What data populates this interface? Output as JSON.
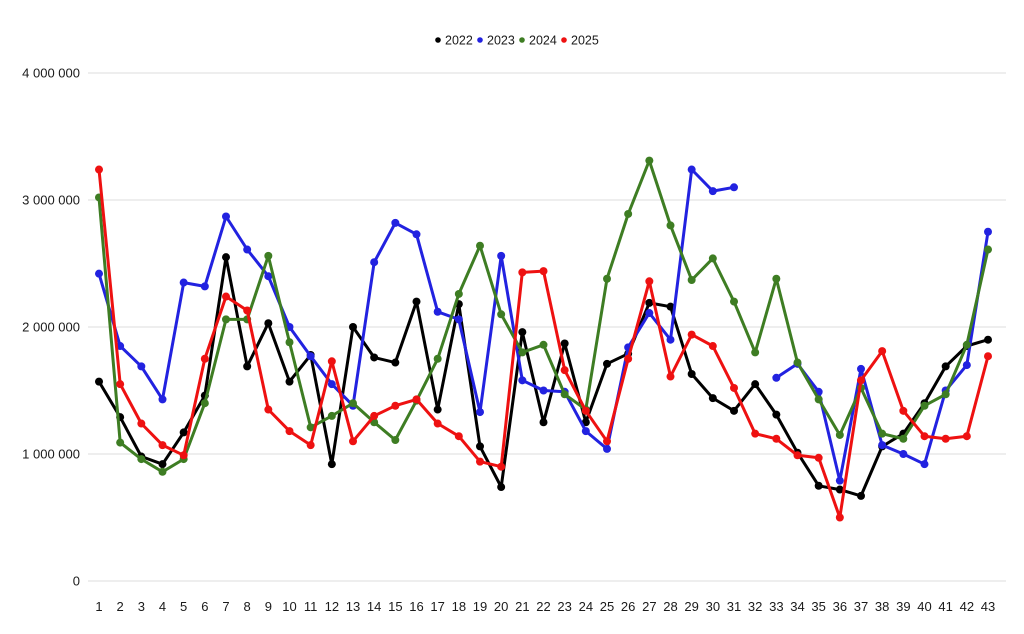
{
  "chart_data": {
    "type": "line",
    "title": "",
    "xlabel": "",
    "ylabel": "",
    "x": [
      1,
      2,
      3,
      4,
      5,
      6,
      7,
      8,
      9,
      10,
      11,
      12,
      13,
      14,
      15,
      16,
      17,
      18,
      19,
      20,
      21,
      22,
      23,
      24,
      25,
      26,
      27,
      28,
      29,
      30,
      31,
      32,
      33,
      34,
      35,
      36,
      37,
      38,
      39,
      40,
      41,
      42,
      43
    ],
    "ylim": [
      0,
      4000000
    ],
    "y_gridline_values": [
      0,
      1000000,
      2000000,
      3000000,
      4000000
    ],
    "ytick_labels": [
      "0",
      "1 000 000",
      "2 000 000",
      "3 000 000",
      "4 000 000"
    ],
    "grid": true,
    "legend_position": "top-center",
    "series": [
      {
        "name": "2022",
        "color": "#000000",
        "values": [
          1570000,
          1290000,
          980000,
          920000,
          1170000,
          1460000,
          2550000,
          1690000,
          2030000,
          1570000,
          1780000,
          920000,
          2000000,
          1760000,
          1720000,
          2200000,
          1350000,
          2180000,
          1060000,
          740000,
          1960000,
          1250000,
          1870000,
          1250000,
          1710000,
          1790000,
          2190000,
          2160000,
          1630000,
          1440000,
          1340000,
          1550000,
          1310000,
          1010000,
          750000,
          720000,
          670000,
          1060000,
          1160000,
          1400000,
          1690000,
          1850000,
          1900000
        ]
      },
      {
        "name": "2023",
        "color": "#2222e0",
        "values": [
          2420000,
          1850000,
          1690000,
          1430000,
          2350000,
          2320000,
          2870000,
          2610000,
          2400000,
          2000000,
          1770000,
          1550000,
          1380000,
          2510000,
          2820000,
          2730000,
          2120000,
          2060000,
          1330000,
          2560000,
          1580000,
          1500000,
          1490000,
          1180000,
          1040000,
          1840000,
          2110000,
          1900000,
          3240000,
          3070000,
          3100000,
          null,
          1600000,
          1710000,
          1490000,
          790000,
          1670000,
          1070000,
          1000000,
          920000,
          1500000,
          1700000,
          2750000
        ]
      },
      {
        "name": "2024",
        "color": "#3e7d23",
        "values": [
          3020000,
          1090000,
          960000,
          860000,
          960000,
          1400000,
          2060000,
          2060000,
          2560000,
          1880000,
          1210000,
          1300000,
          1400000,
          1250000,
          1110000,
          1420000,
          1750000,
          2260000,
          2640000,
          2100000,
          1800000,
          1860000,
          1470000,
          1350000,
          2380000,
          2890000,
          3310000,
          2800000,
          2370000,
          2540000,
          2200000,
          1800000,
          2380000,
          1720000,
          1430000,
          1150000,
          1520000,
          1160000,
          1120000,
          1380000,
          1470000,
          1860000,
          2610000
        ]
      },
      {
        "name": "2025",
        "color": "#ee1111",
        "values": [
          3240000,
          1550000,
          1240000,
          1070000,
          990000,
          1750000,
          2240000,
          2130000,
          1350000,
          1180000,
          1070000,
          1730000,
          1100000,
          1300000,
          1380000,
          1430000,
          1240000,
          1140000,
          940000,
          900000,
          2430000,
          2440000,
          1660000,
          1340000,
          1100000,
          1750000,
          2360000,
          1610000,
          1940000,
          1850000,
          1520000,
          1160000,
          1120000,
          990000,
          970000,
          500000,
          1580000,
          1810000,
          1340000,
          1140000,
          1120000,
          1140000,
          1770000
        ]
      }
    ],
    "style": {
      "gridline_color": "#dddddd",
      "line_width": 3,
      "point_radius": 4,
      "background": "#ffffff"
    }
  }
}
